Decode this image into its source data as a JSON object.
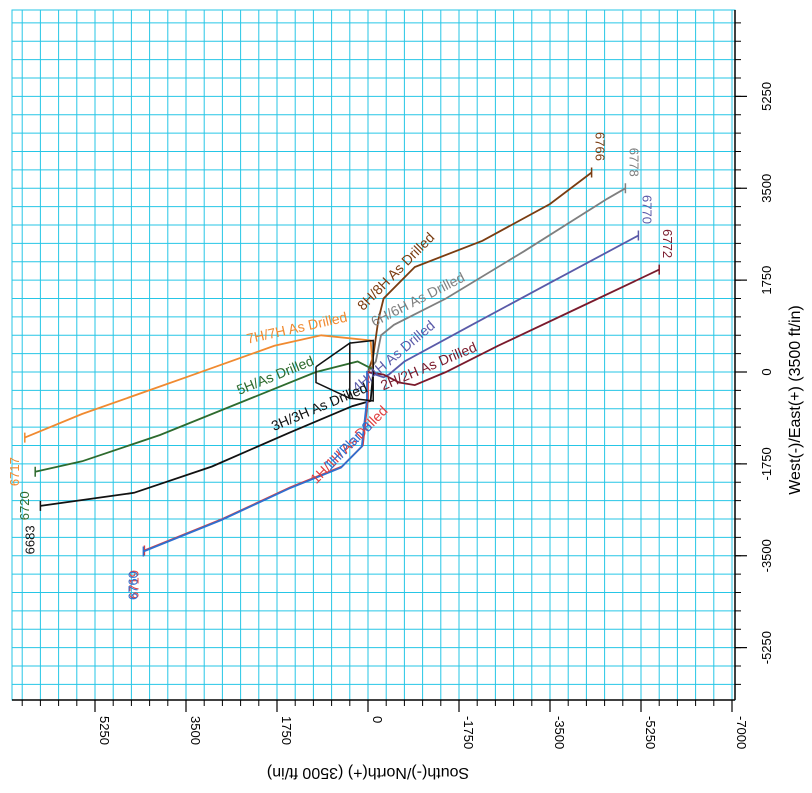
{
  "chart_data": {
    "type": "line",
    "x_axis_label": "South(-)/North(+) (3500 ft/in)",
    "y_axis_label": "West(-)/East(+) (3500 ft/in)",
    "x_ticks": [
      "5250",
      "3500",
      "1750",
      "0",
      "-1750",
      "-3500",
      "-5250",
      "-7000"
    ],
    "y_ticks": [
      "5250",
      "3500",
      "1750",
      "0",
      "-1750",
      "-3500",
      "-5250"
    ],
    "xlim": [
      6800,
      -7000
    ],
    "ylim": [
      -6350,
      6800
    ],
    "grid": true,
    "grid_color": "#26c6e6",
    "series": [
      {
        "name": "8H/8H As Drilled",
        "color": "#7a3c10",
        "end_label": "6766",
        "points": [
          [
            0,
            0
          ],
          [
            -100,
            300
          ],
          [
            -200,
            1000
          ],
          [
            -300,
            1400
          ],
          [
            -900,
            2000
          ],
          [
            -2200,
            2500
          ],
          [
            -3500,
            3200
          ],
          [
            -4300,
            3800
          ]
        ]
      },
      {
        "name": "6H/6H As Drilled",
        "color": "#7f7f7f",
        "end_label": "6778",
        "points": [
          [
            0,
            0
          ],
          [
            -150,
            200
          ],
          [
            -250,
            700
          ],
          [
            -500,
            900
          ],
          [
            -1500,
            1400
          ],
          [
            -3000,
            2300
          ],
          [
            -4600,
            3300
          ],
          [
            -4950,
            3500
          ]
        ]
      },
      {
        "name": "4H/4H As Drilled",
        "color": "#5a5aa8",
        "end_label": "6770",
        "points": [
          [
            0,
            0
          ],
          [
            -300,
            -100
          ],
          [
            -400,
            -50
          ],
          [
            -700,
            200
          ],
          [
            -2000,
            900
          ],
          [
            -3500,
            1700
          ],
          [
            -5200,
            2600
          ]
        ]
      },
      {
        "name": "2H/2H As Drilled",
        "color": "#7a1a2c",
        "end_label": "6772",
        "points": [
          [
            0,
            0
          ],
          [
            -300,
            -50
          ],
          [
            -600,
            -200
          ],
          [
            -900,
            -250
          ],
          [
            -1500,
            0
          ],
          [
            -2500,
            500
          ],
          [
            -4000,
            1200
          ],
          [
            -5600,
            1950
          ]
        ]
      },
      {
        "name": "7H/7H As Drilled",
        "color": "#f08a30",
        "end_label": "6717",
        "points": [
          [
            -100,
            0
          ],
          [
            -50,
            600
          ],
          [
            900,
            700
          ],
          [
            1800,
            500
          ],
          [
            3500,
            -100
          ],
          [
            5500,
            -800
          ],
          [
            6600,
            -1250
          ]
        ]
      },
      {
        "name": "5H/As Drilled",
        "color": "#2e6b2e",
        "end_label": "6720",
        "points": [
          [
            -100,
            50
          ],
          [
            200,
            200
          ],
          [
            1000,
            0
          ],
          [
            2500,
            -600
          ],
          [
            4000,
            -1200
          ],
          [
            5500,
            -1700
          ],
          [
            6400,
            -1900
          ]
        ]
      },
      {
        "name": "3H/3H As Drilled",
        "color": "#111111",
        "end_label": "6683",
        "points": [
          [
            -100,
            0
          ],
          [
            -50,
            -550
          ],
          [
            300,
            -650
          ],
          [
            1500,
            -1150
          ],
          [
            3000,
            -1800
          ],
          [
            4500,
            -2300
          ],
          [
            6300,
            -2550
          ]
        ]
      },
      {
        "name": "1H/1H As Drilled",
        "color": "#e03c3c",
        "end_label": "6719",
        "points": [
          [
            0,
            0
          ],
          [
            0,
            -500
          ],
          [
            100,
            -1400
          ],
          [
            500,
            -1800
          ],
          [
            1500,
            -2200
          ],
          [
            2800,
            -2800
          ],
          [
            4300,
            -3400
          ]
        ]
      },
      {
        "name": "1H/Plan 8",
        "color": "#2f6fd0",
        "end_label": "6760",
        "points": [
          [
            20,
            20
          ],
          [
            20,
            -520
          ],
          [
            120,
            -1420
          ],
          [
            520,
            -1820
          ],
          [
            1520,
            -2220
          ],
          [
            2820,
            -2820
          ],
          [
            4320,
            -3420
          ]
        ]
      }
    ],
    "pad_outline": {
      "color": "#111111",
      "points": [
        [
          1000,
          100
        ],
        [
          1000,
          -200
        ],
        [
          350,
          -500
        ],
        [
          350,
          550
        ],
        [
          1000,
          100
        ],
        [
          350,
          550
        ],
        [
          -100,
          600
        ],
        [
          -100,
          -550
        ],
        [
          350,
          -500
        ]
      ]
    }
  }
}
